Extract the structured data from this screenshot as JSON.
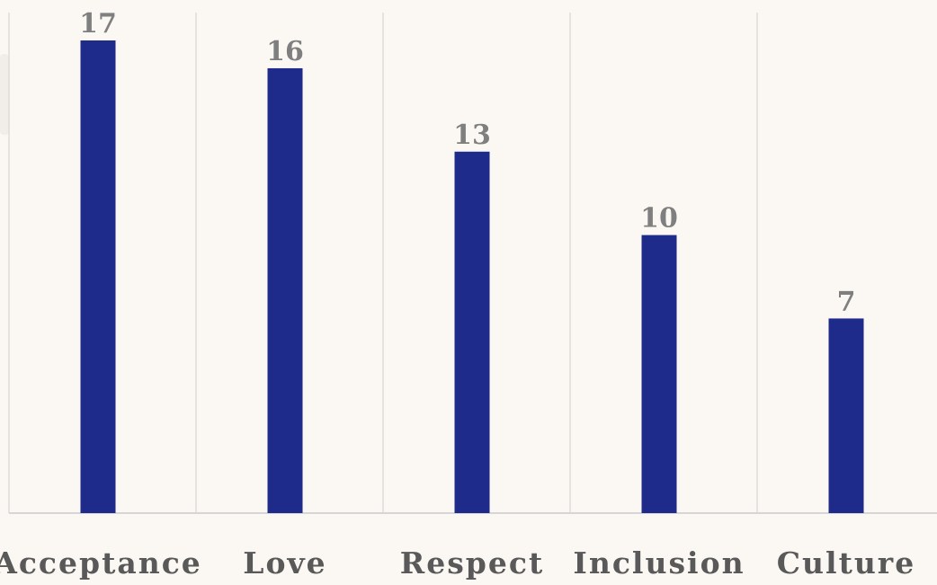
{
  "chart_data": {
    "type": "bar",
    "categories": [
      "Acceptance",
      "Love",
      "Respect",
      "Inclusion",
      "Culture"
    ],
    "values": [
      17,
      16,
      13,
      10,
      7
    ],
    "title": "",
    "xlabel": "",
    "ylabel": "",
    "ylim": [
      0,
      17
    ],
    "grid": false,
    "legend": "none",
    "data_labels": true,
    "colors": {
      "bar": "#1f2b8b",
      "background": "#fbf8f4",
      "value_label": "#7f7f7f",
      "category_label": "#595959"
    }
  }
}
